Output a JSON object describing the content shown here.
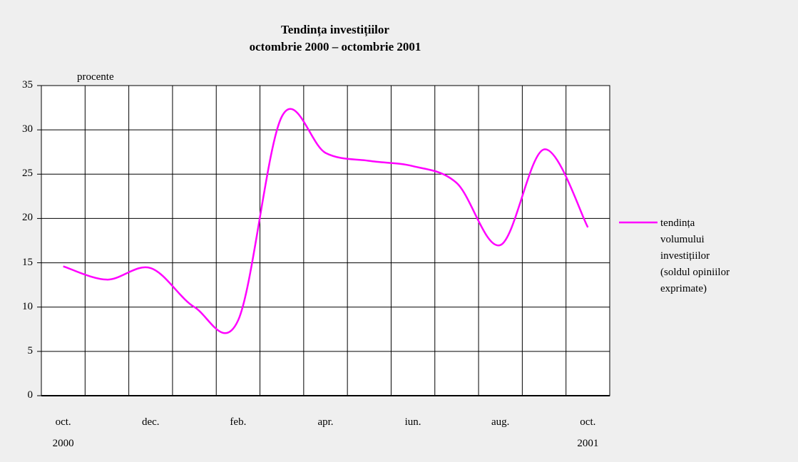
{
  "chart_data": {
    "type": "line",
    "title": "Tendința investițiilor",
    "subtitle": "octombrie 2000 – octombrie 2001",
    "y_axis_label": "procente",
    "categories": [
      "oct.\n2000",
      null,
      "dec.",
      null,
      "feb.",
      null,
      "apr.",
      null,
      "iun.",
      null,
      "aug.",
      null,
      "oct.\n2001"
    ],
    "series": [
      {
        "name": "tendința volumului investițiilor (soldul opiniilor exprimate)",
        "color": "#ff00ff",
        "values": [
          14.6,
          13.1,
          14.4,
          10,
          8.5,
          31.5,
          27.4,
          26.5,
          25.9,
          24,
          17,
          27.8,
          19
        ]
      }
    ],
    "ylim": [
      0,
      35
    ],
    "yticks": [
      0,
      5,
      10,
      15,
      20,
      25,
      30,
      35
    ],
    "grid": true,
    "legend": "right"
  }
}
